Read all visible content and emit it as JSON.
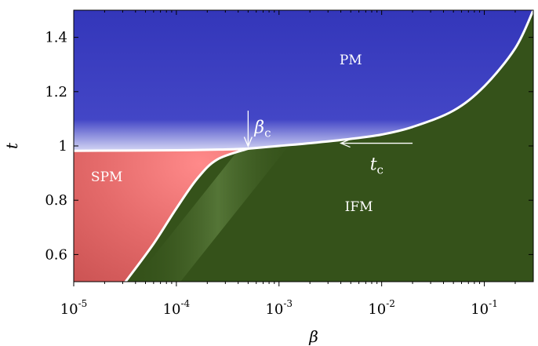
{
  "chart_data": {
    "type": "area",
    "title": "",
    "xlabel": "β",
    "ylabel": "t",
    "xscale": "log",
    "xlim": [
      1e-05,
      0.3
    ],
    "ylim": [
      0.5,
      1.5
    ],
    "x_ticks": [
      {
        "value": 1e-05,
        "base": "10",
        "exp": "-5"
      },
      {
        "value": 0.0001,
        "base": "10",
        "exp": "-4"
      },
      {
        "value": 0.001,
        "base": "10",
        "exp": "-3"
      },
      {
        "value": 0.01,
        "base": "10",
        "exp": "-2"
      },
      {
        "value": 0.1,
        "base": "10",
        "exp": "-1"
      }
    ],
    "y_ticks": [
      {
        "value": 0.6,
        "label": "0.6"
      },
      {
        "value": 0.8,
        "label": "0.8"
      },
      {
        "value": 1.0,
        "label": "1"
      },
      {
        "value": 1.2,
        "label": "1.2"
      },
      {
        "value": 1.4,
        "label": "1.4"
      }
    ],
    "grid": false,
    "regions": [
      {
        "name": "PM",
        "color": "#3a3dc2",
        "label_at": {
          "x": 0.005,
          "y": 1.3
        }
      },
      {
        "name": "SPM",
        "color": "#e87070",
        "label_at": {
          "x": 2.1e-05,
          "y": 0.87
        }
      },
      {
        "name": "IFM",
        "color": "#35521a",
        "label_at": {
          "x": 0.006,
          "y": 0.76
        }
      }
    ],
    "boundaries": [
      {
        "name": "PM-SPM",
        "x": [
          1e-05,
          0.0001,
          0.0003,
          0.0005
        ],
        "y": [
          0.982,
          0.984,
          0.987,
          0.99
        ]
      },
      {
        "name": "SPM-IFM",
        "x": [
          3.2e-05,
          6e-05,
          0.0001,
          0.00016,
          0.00025,
          0.0005
        ],
        "y": [
          0.5,
          0.64,
          0.77,
          0.88,
          0.95,
          0.99
        ]
      },
      {
        "name": "PM-IFM",
        "x": [
          0.0005,
          0.001,
          0.002,
          0.005,
          0.01,
          0.02,
          0.05,
          0.1,
          0.2,
          0.3
        ],
        "y": [
          0.99,
          1.0,
          1.01,
          1.026,
          1.042,
          1.07,
          1.13,
          1.22,
          1.36,
          1.5
        ]
      }
    ],
    "annotations": [
      {
        "name": "beta-c",
        "symbol": "β",
        "subscript": "c",
        "arrow": "down",
        "x": 0.0005,
        "y_from": 1.13,
        "y_to": 0.99
      },
      {
        "name": "t-c",
        "symbol": "t",
        "subscript": "c",
        "arrow": "left",
        "y": 1.01,
        "x_from": 0.02,
        "x_to": 0.004
      }
    ]
  }
}
